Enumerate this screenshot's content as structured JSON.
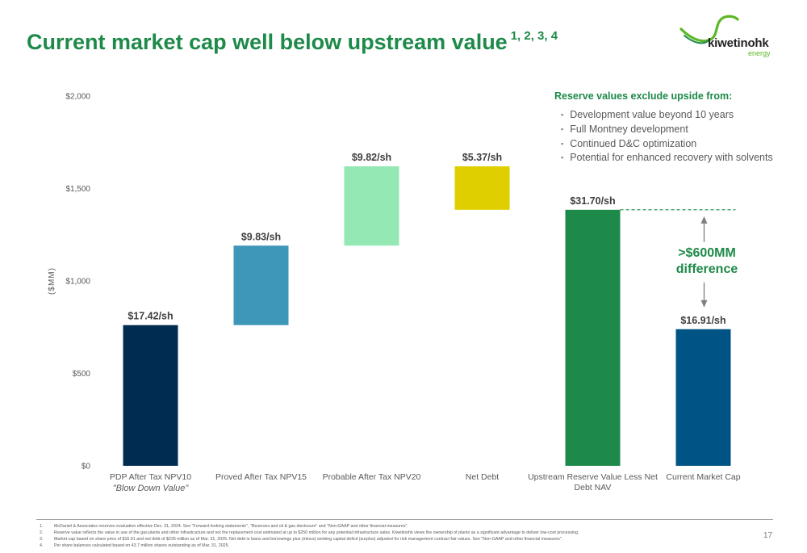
{
  "title": "Current market cap well below upstream value",
  "title_superscript": "1, 2, 3, 4",
  "logo": {
    "name": "kiwetinohk",
    "sub": "energy"
  },
  "colors": {
    "title_green": "#1e8a49",
    "logo_green": "#5cb828",
    "pdp": "#002c52",
    "proved": "#3e97b9",
    "probable": "#93e8b4",
    "net_debt": "#e0cf00",
    "upstream": "#1e8a49",
    "market_cap": "#005485"
  },
  "chart_data": {
    "type": "bar",
    "subtype": "waterfall",
    "ylabel": "($MM)",
    "ylim": [
      0,
      2000
    ],
    "yticks": [
      0,
      500,
      1000,
      1500,
      2000
    ],
    "ytick_labels": [
      "$0",
      "$500",
      "$1,000",
      "$1,500",
      "$2,000"
    ],
    "grid": false,
    "categories": [
      "PDP After Tax NPV10",
      "Proved After Tax NPV15",
      "Probable After Tax NPV20",
      "Net Debt",
      "Upstream Reserve Value Less Net Debt NAV",
      "Current Market Cap"
    ],
    "category_sublabels": [
      "\"Blow Down Value\"",
      "",
      "",
      "",
      "",
      ""
    ],
    "bars": [
      {
        "base": 0,
        "top": 761,
        "label": "$17.42/sh",
        "color": "#002c52"
      },
      {
        "base": 761,
        "top": 1191,
        "label": "$9.83/sh",
        "color": "#3e97b9"
      },
      {
        "base": 1191,
        "top": 1620,
        "label": "$9.82/sh",
        "color": "#93e8b4"
      },
      {
        "base": 1385,
        "top": 1620,
        "label": "$5.37/sh",
        "color": "#e0cf00"
      },
      {
        "base": 0,
        "top": 1385,
        "label": "$31.70/sh",
        "color": "#1e8a49"
      },
      {
        "base": 0,
        "top": 739,
        "label": "$16.91/sh",
        "color": "#005485"
      }
    ]
  },
  "sidebar": {
    "heading": "Reserve values exclude upside from:",
    "items": [
      "Development value beyond 10 years",
      "Full Montney development",
      "Continued D&C optimization",
      "Potential for enhanced recovery with solvents"
    ]
  },
  "annotation": {
    "line1": ">$600MM",
    "line2": "difference"
  },
  "footnotes": [
    {
      "num": "1.",
      "text": "McDaniel & Associates reserves evaluation effective Dec. 31, 2024. See \"Forward-looking statements\", \"Reserves and oil & gas disclosure\" and \"Non-GAAP and other financial measures\"."
    },
    {
      "num": "2.",
      "text": "Reserve value reflects the value in use of the gas plants and other infrastructure and not the replacement cost estimated at up to $250 million for any potential infrastructure sales. Kiwetinohk views the ownership of plants as a significant advantage to deliver low-cost processing."
    },
    {
      "num": "3.",
      "text": "Market cap based on share price of $16.91 and net debt of $235 million as of Mar. 31, 2025. Net debt is loans and borrowings plus (minus) working capital deficit (surplus) adjusted for risk management contract fair values. See \"Non-GAAP and other financial measures\"."
    },
    {
      "num": "4.",
      "text": "Per share balances calculated based on 43.7 million shares outstanding as of Mar. 31, 2025."
    }
  ],
  "page_number": "17"
}
